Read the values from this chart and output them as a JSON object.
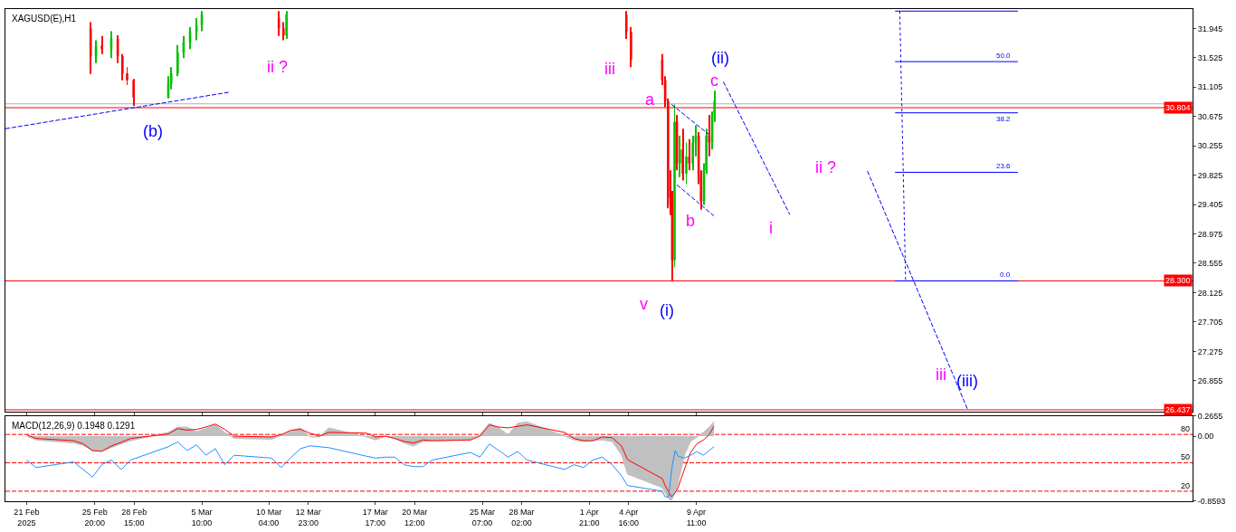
{
  "chart_data": [
    {
      "type": "candlestick",
      "title": "XAGUSD(E),H1",
      "grid": false,
      "tick_labels": "y",
      "x": [
        "2025-02-25T13:00",
        "2025-02-25T22:00",
        "2025-02-26T08:00",
        "2025-02-27T00:00",
        "2025-02-27T11:00",
        "2025-02-27T19:00",
        "2025-02-28T03:00",
        "2025-02-28T14:00",
        "2025-03-03T01:00",
        "2025-03-03T06:00",
        "2025-03-03T17:00",
        "2025-03-04T03:00",
        "2025-03-04T14:00",
        "2025-03-05T01:00",
        "2025-03-05T10:00",
        "2025-03-10T21:00",
        "2025-03-11T05:00",
        "2025-03-11T10:00",
        "2025-04-04T12:00",
        "2025-04-04T20:00",
        "2025-04-07T01:00",
        "2025-04-07T06:00",
        "2025-04-07T11:00",
        "2025-04-07T15:00",
        "2025-04-07T18:00",
        "2025-04-07T22:00",
        "2025-04-08T02:00",
        "2025-04-08T07:00",
        "2025-04-08T12:00",
        "2025-04-08T18:00",
        "2025-04-08T23:00",
        "2025-04-09T05:00",
        "2025-04-09T10:00",
        "2025-04-09T15:00",
        "2025-04-09T19:00",
        "2025-04-10T00:00",
        "2025-04-10T04:00",
        "2025-04-10T09:00",
        "2025-04-10T14:00",
        "2025-04-10T18:00"
      ],
      "ohlc": [
        [
          31.95,
          32.04,
          31.29,
          31.55
        ],
        [
          31.55,
          31.78,
          31.45,
          31.7
        ],
        [
          31.7,
          31.84,
          31.58,
          31.65
        ],
        [
          31.65,
          31.91,
          31.52,
          31.8
        ],
        [
          31.8,
          31.85,
          31.45,
          31.55
        ],
        [
          31.55,
          31.58,
          31.2,
          31.3
        ],
        [
          31.3,
          31.39,
          31.13,
          31.2
        ],
        [
          31.2,
          31.22,
          30.83,
          30.95
        ],
        [
          30.95,
          31.26,
          30.94,
          31.15
        ],
        [
          31.15,
          31.39,
          31.07,
          31.3
        ],
        [
          31.3,
          31.71,
          31.26,
          31.6
        ],
        [
          31.6,
          31.84,
          31.52,
          31.75
        ],
        [
          31.75,
          31.97,
          31.65,
          31.9
        ],
        [
          31.9,
          32.1,
          31.78,
          32.0
        ],
        [
          32.0,
          32.2,
          31.91,
          32.15
        ],
        [
          32.1,
          32.2,
          31.84,
          31.95
        ],
        [
          31.95,
          32.04,
          31.78,
          31.85
        ],
        [
          31.85,
          32.2,
          31.8,
          32.15
        ],
        [
          32.15,
          32.2,
          31.8,
          31.9
        ],
        [
          31.9,
          31.97,
          31.39,
          31.5
        ],
        [
          31.5,
          31.58,
          31.13,
          31.2
        ],
        [
          31.2,
          31.26,
          30.81,
          30.9
        ],
        [
          30.9,
          30.94,
          29.35,
          29.5
        ],
        [
          29.5,
          29.9,
          29.25,
          29.4
        ],
        [
          29.4,
          29.6,
          28.3,
          28.6
        ],
        [
          28.6,
          30.85,
          28.5,
          30.6
        ],
        [
          30.6,
          30.7,
          29.9,
          30.0
        ],
        [
          30.0,
          30.4,
          29.8,
          30.2
        ],
        [
          30.2,
          30.5,
          29.75,
          29.85
        ],
        [
          29.85,
          30.3,
          29.7,
          30.1
        ],
        [
          30.1,
          30.35,
          29.9,
          30.0
        ],
        [
          30.0,
          30.4,
          29.9,
          30.3
        ],
        [
          30.3,
          30.55,
          30.1,
          30.4
        ],
        [
          30.4,
          30.45,
          29.7,
          29.8
        ],
        [
          29.8,
          29.9,
          29.33,
          29.45
        ],
        [
          29.45,
          30.0,
          29.4,
          29.9
        ],
        [
          29.9,
          30.5,
          29.85,
          30.4
        ],
        [
          30.4,
          30.7,
          30.1,
          30.3
        ],
        [
          30.3,
          30.75,
          30.2,
          30.7
        ],
        [
          30.7,
          31.05,
          30.6,
          30.9
        ]
      ],
      "colors": [
        "#ff0000",
        "#00c000",
        "#ff0000",
        "#00c000",
        "#ff0000",
        "#ff0000",
        "#ff0000",
        "#ff0000",
        "#00c000",
        "#00c000",
        "#00c000",
        "#00c000",
        "#00c000",
        "#00c000",
        "#00c000",
        "#ff0000",
        "#ff0000",
        "#00c000",
        "#ff0000",
        "#ff0000",
        "#ff0000",
        "#ff0000",
        "#ff0000",
        "#ff0000",
        "#ff0000",
        "#00c000",
        "#ff0000",
        "#00c000",
        "#ff0000",
        "#00c000",
        "#ff0000",
        "#00c000",
        "#00c000",
        "#ff0000",
        "#ff0000",
        "#00c000",
        "#00c000",
        "#ff0000",
        "#00c000",
        "#00c000"
      ],
      "xlim": [
        "2025-02-19T12:00",
        "2025-05-14T15:00"
      ],
      "xticks": [
        {
          "value": "2025-02-21T00:00",
          "label": null
        },
        {
          "value": "2025-02-25T20:00",
          "label": null
        },
        {
          "value": "2025-02-28T15:00",
          "label": null
        },
        {
          "value": "2025-03-05T10:00",
          "label": null
        },
        {
          "value": "2025-03-10T04:00",
          "label": null
        },
        {
          "value": "2025-03-12T23:00",
          "label": null
        },
        {
          "value": "2025-03-17T17:00",
          "label": null
        },
        {
          "value": "2025-03-20T12:00",
          "label": null
        },
        {
          "value": "2025-03-25T07:00",
          "label": null
        },
        {
          "value": "2025-03-28T02:00",
          "label": null
        },
        {
          "value": "2025-04-01T21:00",
          "label": null
        },
        {
          "value": "2025-04-04T16:00",
          "label": null
        },
        {
          "value": "2025-04-09T11:00",
          "label": null
        }
      ],
      "ylim": [
        26.41,
        32.23
      ],
      "yticks": [
        31.945,
        31.525,
        31.105,
        30.675,
        30.255,
        29.825,
        29.405,
        28.975,
        28.555,
        28.125,
        27.705,
        27.275,
        26.855
      ],
      "ref_lines": [
        {
          "axis": "y",
          "value": 30.86,
          "color": "#b0b0b0"
        },
        {
          "axis": "y",
          "value": 30.804,
          "label": "30.804",
          "color": "#ff0000"
        },
        {
          "axis": "y",
          "value": 28.3,
          "label": "28.300",
          "color": "#ff0000"
        },
        {
          "axis": "y",
          "value": 26.437,
          "label": "26.437",
          "color": "#ff0000"
        }
      ],
      "series": [
        {
          "type": "line",
          "color": "#0000ff",
          "line_style": "dashed",
          "x": [
            "2025-02-19T12:00",
            "2025-03-07T10:00"
          ],
          "values": [
            30.5,
            31.03
          ]
        },
        {
          "type": "line",
          "color": "#0000ff",
          "line_style": "dashed",
          "x": [
            "2025-04-07T17:00",
            "2025-04-10T08:00"
          ],
          "values": [
            30.85,
            30.42
          ]
        },
        {
          "type": "line",
          "color": "#0000ff",
          "line_style": "dashed",
          "x": [
            "2025-04-08T02:00",
            "2025-04-10T17:00"
          ],
          "values": [
            29.69,
            29.24
          ]
        },
        {
          "type": "line",
          "color": "#0000ff",
          "line_style": "dashed",
          "x": [
            "2025-04-11T09:00",
            "2025-04-16T02:00"
          ],
          "values": [
            31.18,
            29.26
          ]
        },
        {
          "type": "line",
          "color": "#0000ff",
          "line_style": "dashed",
          "x": [
            "2025-04-21T14:00",
            "2025-04-28T16:00"
          ],
          "values": [
            29.89,
            26.45
          ]
        },
        {
          "type": "line",
          "color": "#0000ff",
          "line_style": "dotted",
          "x": [
            "2025-04-23T21:00",
            "2025-04-24T07:00"
          ],
          "values": [
            32.2,
            28.3
          ]
        },
        {
          "type": "line",
          "color": "#0000ff",
          "line_style": "solid",
          "x": [
            "2025-04-23T13:00",
            "2025-05-02T06:00"
          ],
          "values": [
            32.2,
            32.2
          ]
        },
        {
          "type": "line",
          "color": "#0000ff",
          "line_style": "solid",
          "x": [
            "2025-04-23T13:00",
            "2025-05-02T06:00"
          ],
          "values": [
            31.47,
            31.47
          ]
        },
        {
          "type": "line",
          "color": "#0000ff",
          "line_style": "solid",
          "x": [
            "2025-04-23T13:00",
            "2025-05-02T06:00"
          ],
          "values": [
            30.73,
            30.73
          ]
        },
        {
          "type": "line",
          "color": "#0000ff",
          "line_style": "solid",
          "x": [
            "2025-04-23T13:00",
            "2025-05-02T06:00"
          ],
          "values": [
            29.87,
            29.87
          ]
        },
        {
          "type": "line",
          "color": "#0000ff",
          "line_style": "solid",
          "x": [
            "2025-04-23T13:00",
            "2025-05-02T06:00"
          ],
          "values": [
            28.3,
            28.3
          ]
        }
      ],
      "annotations": [
        "(b)",
        "ii ?",
        "iii",
        "a",
        "(ii)",
        "c",
        "b",
        "i",
        "ii ?",
        "v",
        "(i)",
        "iii",
        "(iii)",
        {
          "text": "50.0",
          "x": "2025-05-01T20:00",
          "y": 31.47
        },
        {
          "text": "38.2",
          "x": "2025-05-01T20:00",
          "y": 30.73
        },
        {
          "text": "23.6",
          "x": "2025-05-01T20:00",
          "y": 29.87
        },
        {
          "text": "0.0",
          "x": "2025-05-01T20:00",
          "y": 28.3
        }
      ]
    },
    {
      "type": "line",
      "title": "MACD(12,26,9) 0.1948 0.1291",
      "grid": false,
      "xlim": [
        "2025-02-19T12:00",
        "2025-05-14T15:00"
      ],
      "xticks": [
        {
          "value": "2025-02-21T00:00",
          "label": "21 Feb 2025"
        },
        {
          "value": "2025-02-25T20:00",
          "label": "25 Feb 20:00"
        },
        {
          "value": "2025-02-28T15:00",
          "label": "28 Feb 15:00"
        },
        {
          "value": "2025-03-05T10:00",
          "label": "5 Mar 10:00"
        },
        {
          "value": "2025-03-10T04:00",
          "label": "10 Mar 04:00"
        },
        {
          "value": "2025-03-12T23:00",
          "label": "12 Mar 23:00"
        },
        {
          "value": "2025-03-17T17:00",
          "label": "17 Mar 17:00"
        },
        {
          "value": "2025-03-20T12:00",
          "label": "20 Mar 12:00"
        },
        {
          "value": "2025-03-25T07:00",
          "label": "25 Mar 07:00"
        },
        {
          "value": "2025-03-28T02:00",
          "label": "28 Mar 02:00"
        },
        {
          "value": "2025-04-01T21:00",
          "label": "1 Apr 21:00"
        },
        {
          "value": "2025-04-04T16:00",
          "label": "4 Apr 16:00"
        },
        {
          "value": "2025-04-09T11:00",
          "label": "9 Apr 11:00"
        }
      ],
      "x": [
        "2025-02-21T00:00",
        "2025-02-21T16:00",
        "2025-02-24T08:00",
        "2025-02-25T00:00",
        "2025-02-25T16:00",
        "2025-02-26T08:00",
        "2025-02-27T00:00",
        "2025-02-27T17:00",
        "2025-02-28T09:00",
        "2025-03-03T01:00",
        "2025-03-03T17:00",
        "2025-03-04T09:00",
        "2025-03-05T01:00",
        "2025-03-05T17:00",
        "2025-03-06T09:00",
        "2025-03-07T01:00",
        "2025-03-07T17:00",
        "2025-03-10T09:00",
        "2025-03-11T01:00",
        "2025-03-11T18:00",
        "2025-03-12T10:00",
        "2025-03-13T02:00",
        "2025-03-13T18:00",
        "2025-03-14T10:00",
        "2025-03-17T02:00",
        "2025-03-17T18:00",
        "2025-03-18T10:00",
        "2025-03-19T02:00",
        "2025-03-19T18:00",
        "2025-03-20T10:00",
        "2025-03-21T02:00",
        "2025-03-21T18:00",
        "2025-03-24T11:00",
        "2025-03-25T03:00",
        "2025-03-25T19:00",
        "2025-03-26T11:00",
        "2025-03-27T03:00",
        "2025-03-27T19:00",
        "2025-03-28T11:00",
        "2025-03-31T03:00",
        "2025-03-31T19:00",
        "2025-04-01T11:00",
        "2025-04-02T03:00",
        "2025-04-02T19:00",
        "2025-04-03T12:00",
        "2025-04-04T04:00",
        "2025-04-04T14:00",
        "2025-04-07T01:00",
        "2025-04-07T06:00",
        "2025-04-07T12:00",
        "2025-04-07T17:00",
        "2025-04-07T23:00",
        "2025-04-08T04:00",
        "2025-04-08T15:00",
        "2025-04-09T01:00",
        "2025-04-09T12:00",
        "2025-04-09T23:00",
        "2025-04-10T09:00",
        "2025-04-10T17:00"
      ],
      "ylim": [
        -0.8593,
        0.2655
      ],
      "yticks": [
        0.2655,
        {
          "value": 0,
          "label": "0.00"
        },
        -0.8593
      ],
      "y2lim": [
        9.4,
        99.4
      ],
      "y2ticks": [
        20,
        50,
        80
      ],
      "ref_lines": [
        {
          "axis": "y2",
          "value": 80,
          "color": "#ff0000",
          "line_style": "dashed"
        },
        {
          "axis": "y2",
          "value": 50,
          "color": "#ff0000",
          "line_style": "dashed"
        },
        {
          "axis": "y2",
          "value": 20,
          "color": "#ff0000",
          "line_style": "dashed"
        }
      ],
      "series": [
        {
          "type": "area",
          "color": "#c0c0c0",
          "values": [
            0,
            -0.05,
            -0.09,
            -0.12,
            -0.19,
            -0.2,
            -0.15,
            -0.1,
            -0.06,
            0.05,
            0.12,
            0.12,
            0.06,
            0.1,
            0.15,
            0.05,
            -0.03,
            -0.04,
            0.01,
            0.07,
            0.11,
            -0.01,
            -0.01,
            0.11,
            -0.01,
            -0.05,
            0,
            -0.03,
            -0.09,
            -0.13,
            -0.07,
            -0.06,
            -0.05,
            0.02,
            0.17,
            0.11,
            0.02,
            0.17,
            0.19,
            0,
            -0.05,
            -0.07,
            -0.06,
            -0.05,
            -0.07,
            -0.25,
            -0.5,
            -0.68,
            -0.75,
            -0.83,
            -0.85,
            -0.74,
            -0.62,
            -0.25,
            -0.07,
            -0.01,
            0.05,
            0.12,
            0.19
          ]
        },
        {
          "type": "line",
          "color": "#ff0000",
          "values": [
            0.02,
            -0.03,
            -0.06,
            -0.1,
            -0.19,
            -0.2,
            -0.13,
            -0.08,
            -0.03,
            0.03,
            0.1,
            0.08,
            0.09,
            0.12,
            0.16,
            0.09,
            0,
            -0.01,
            0.02,
            0.08,
            0.09,
            0.04,
            0,
            0.05,
            0.04,
            -0.01,
            0,
            -0.03,
            -0.07,
            -0.09,
            -0.05,
            -0.06,
            -0.05,
            0,
            0.15,
            0.12,
            0.11,
            0.13,
            0.15,
            0.05,
            -0.03,
            -0.06,
            -0.06,
            -0.01,
            -0.02,
            -0.13,
            -0.31,
            -0.56,
            -0.65,
            -0.74,
            -0.8,
            -0.75,
            -0.68,
            -0.43,
            -0.22,
            -0.1,
            -0.05,
            0.02,
            0.13
          ]
        },
        {
          "type": "line",
          "color": "#1e90ff",
          "axis": "y2",
          "values": [
            53,
            45,
            51,
            43,
            35,
            48,
            53,
            43,
            53,
            67,
            72,
            63,
            69,
            58,
            65,
            48,
            58,
            55,
            45,
            56,
            65,
            68,
            67,
            66,
            57,
            55,
            56,
            56,
            48,
            46,
            46,
            53,
            61,
            56,
            70,
            63,
            56,
            62,
            53,
            43,
            48,
            45,
            53,
            56,
            48,
            36,
            26,
            20,
            14,
            14,
            43,
            63,
            57,
            55,
            58,
            62,
            58,
            63,
            67
          ]
        }
      ]
    }
  ]
}
